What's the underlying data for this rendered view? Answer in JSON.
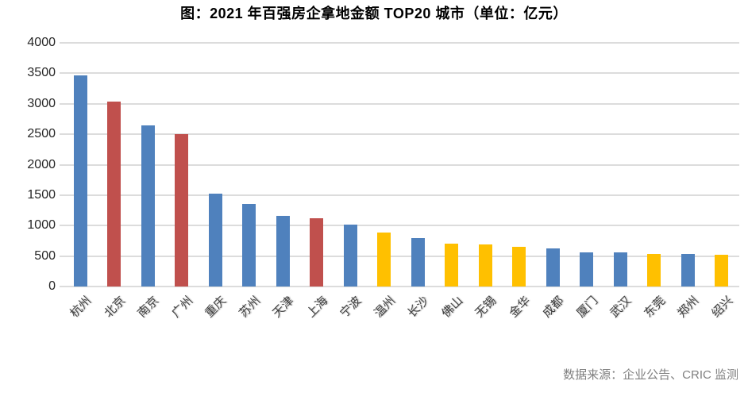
{
  "title": "图：2021 年百强房企拿地金额 TOP20 城市（单位：亿元）",
  "source": "数据来源：企业公告、CRIC 监测",
  "colors": {
    "blue": "#4F81BD",
    "red": "#C0504D",
    "yellow": "#FFC000",
    "gridline": "#DCDCDC",
    "title_text": "#000000",
    "axis_text": "#262626",
    "xlabel_text": "#3F3F3F",
    "source_text": "#808080",
    "background": "#FFFFFF"
  },
  "chart_data": {
    "type": "bar",
    "title": "图：2021 年百强房企拿地金额 TOP20 城市（单位：亿元）",
    "unit": "亿元",
    "categories": [
      "杭州",
      "北京",
      "南京",
      "广州",
      "重庆",
      "苏州",
      "天津",
      "上海",
      "宁波",
      "温州",
      "长沙",
      "佛山",
      "无锡",
      "金华",
      "成都",
      "厦门",
      "武汉",
      "东莞",
      "郑州",
      "绍兴"
    ],
    "values": [
      3460,
      3030,
      2650,
      2500,
      1520,
      1360,
      1160,
      1120,
      1010,
      880,
      800,
      700,
      690,
      650,
      630,
      565,
      560,
      535,
      530,
      520
    ],
    "bar_colors": [
      "blue",
      "red",
      "blue",
      "red",
      "blue",
      "blue",
      "blue",
      "red",
      "blue",
      "yellow",
      "blue",
      "yellow",
      "yellow",
      "yellow",
      "blue",
      "blue",
      "blue",
      "yellow",
      "blue",
      "yellow"
    ],
    "xlabel": "",
    "ylabel": "",
    "ylim": [
      0,
      4000
    ],
    "yticks": [
      0,
      500,
      1000,
      1500,
      2000,
      2500,
      3000,
      3500,
      4000
    ],
    "grid": "horizontal",
    "legend": "none",
    "x_label_rotation": 45
  }
}
